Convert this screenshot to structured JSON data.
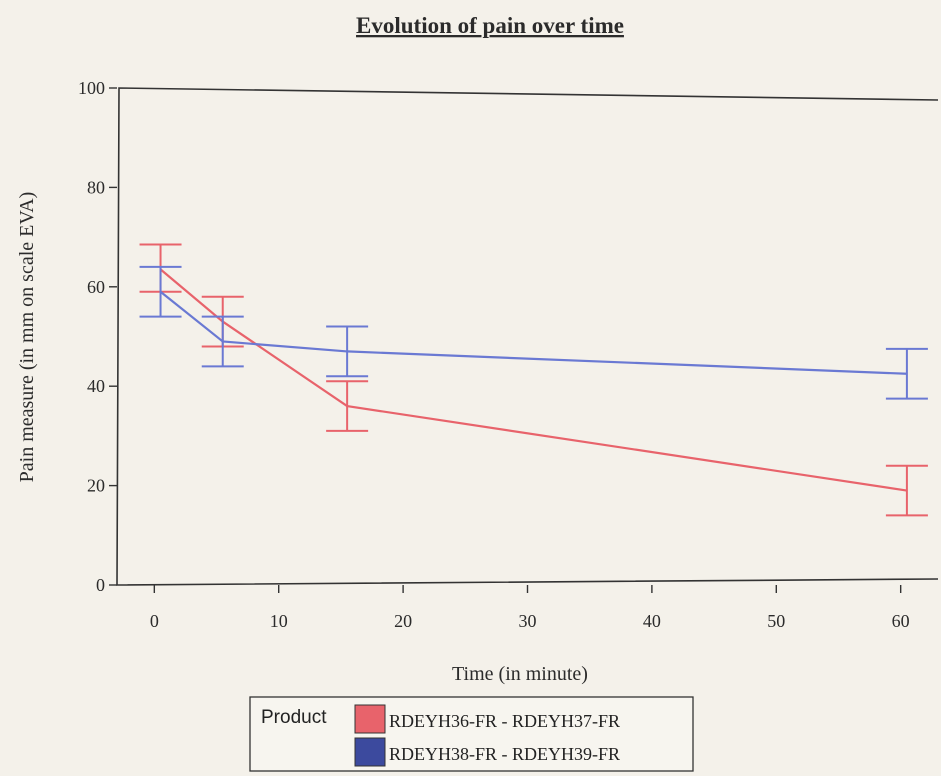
{
  "chart_data": {
    "type": "line",
    "title": "Evolution of pain over time",
    "xlabel": "Time (in minute)",
    "ylabel": "Pain measure (in mm on scale EVA)",
    "xlim": [
      -3,
      63
    ],
    "ylim": [
      0,
      100
    ],
    "x_ticks": [
      0,
      10,
      20,
      30,
      40,
      50,
      60
    ],
    "y_ticks": [
      0,
      20,
      40,
      60,
      80,
      100
    ],
    "grid": false,
    "legend_title": "Product",
    "legend_position": "bottom-center",
    "series": [
      {
        "name": "RDEYH36-FR - RDEYH37-FR",
        "color": "#e8636b",
        "points": [
          {
            "x": 0.5,
            "y": 63.5,
            "lo": 59,
            "hi": 68.5
          },
          {
            "x": 5.5,
            "y": 53,
            "lo": 48,
            "hi": 58
          },
          {
            "x": 15.5,
            "y": 36,
            "lo": 31,
            "hi": 41
          },
          {
            "x": 60.5,
            "y": 19,
            "lo": 14,
            "hi": 24
          }
        ]
      },
      {
        "name": "RDEYH38-FR - RDEYH39-FR",
        "color": "#6a79d3",
        "legend_color": "#3c4a9e",
        "points": [
          {
            "x": 0.5,
            "y": 59,
            "lo": 54,
            "hi": 64
          },
          {
            "x": 5.5,
            "y": 49,
            "lo": 44,
            "hi": 54
          },
          {
            "x": 15.5,
            "y": 47,
            "lo": 42,
            "hi": 52
          },
          {
            "x": 60.5,
            "y": 42.5,
            "lo": 37.5,
            "hi": 47.5
          }
        ]
      }
    ]
  }
}
